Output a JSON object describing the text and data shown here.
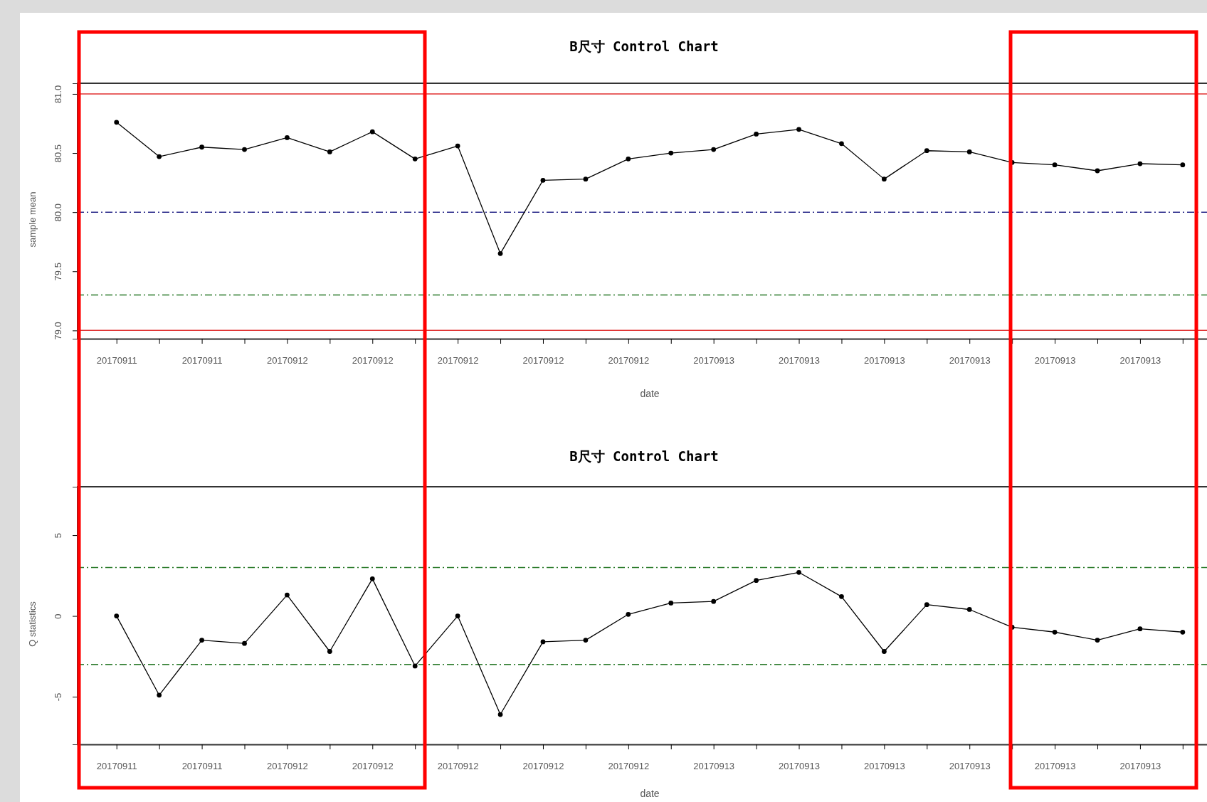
{
  "chart_data": [
    {
      "type": "line",
      "title": "B尺寸 Control Chart",
      "xlabel": "date",
      "ylabel": "sample mean",
      "categories": [
        "20170911",
        null,
        "20170911",
        null,
        "20170912",
        null,
        "20170912",
        null,
        "20170912",
        null,
        "20170912",
        null,
        "20170912",
        null,
        "20170913",
        null,
        "20170913",
        null,
        "20170913",
        null,
        "20170913",
        null,
        "20170913",
        null,
        "20170913",
        null
      ],
      "series": [
        {
          "color": "#000000",
          "values": [
            80.76,
            80.47,
            80.55,
            80.53,
            80.63,
            80.51,
            80.68,
            80.45,
            80.56,
            79.65,
            80.27,
            80.28,
            80.45,
            80.5,
            80.53,
            80.66,
            80.7,
            80.58,
            80.28,
            80.52,
            80.51,
            80.42,
            80.4,
            80.35,
            80.41,
            80.4
          ]
        }
      ],
      "ylim": [
        78.93,
        81.09
      ],
      "yticks": [
        {
          "value": 79,
          "label": "79.0"
        },
        {
          "value": 79.5,
          "label": "79.5"
        },
        {
          "value": 80,
          "label": "80.0"
        },
        {
          "value": 80.5,
          "label": "80.5"
        },
        {
          "value": 81,
          "label": "81.0"
        }
      ],
      "marker": "circle",
      "line_style": "solid",
      "grid": false,
      "ref_lines": [
        {
          "axis": "y",
          "value": 81,
          "color": "#e03030",
          "line_style": "solid"
        },
        {
          "axis": "y",
          "value": 80,
          "color": "#2a2a8a",
          "line_style": "dashed"
        },
        {
          "axis": "y",
          "value": 79.3,
          "color": "#2a7a2a",
          "line_style": "dashed"
        },
        {
          "axis": "y",
          "value": 79,
          "color": "#e03030",
          "line_style": "solid"
        }
      ]
    },
    {
      "type": "line",
      "title": "B尺寸 Control Chart",
      "xlabel": "date",
      "ylabel": "Q statistics",
      "categories": [
        "20170911",
        null,
        "20170911",
        null,
        "20170912",
        null,
        "20170912",
        null,
        "20170912",
        null,
        "20170912",
        null,
        "20170912",
        null,
        "20170913",
        null,
        "20170913",
        null,
        "20170913",
        null,
        "20170913",
        null,
        "20170913",
        null,
        "20170913",
        null
      ],
      "series": [
        {
          "color": "#000000",
          "values": [
            0,
            -4.9,
            -1.5,
            -1.7,
            1.3,
            -2.2,
            2.3,
            -3.1,
            0,
            -6.1,
            -1.6,
            -1.5,
            0.1,
            0.8,
            0.9,
            2.2,
            2.7,
            1.2,
            -2.2,
            0.7,
            0.4,
            -0.7,
            -1.0,
            -1.5,
            -0.8,
            -1.0
          ]
        }
      ],
      "ylim": [
        -7.95,
        8
      ],
      "yticks": [
        -5,
        0,
        5
      ],
      "marker": "circle",
      "line_style": "solid",
      "grid": false,
      "ref_lines": [
        {
          "axis": "y",
          "value": 3,
          "color": "#2a7a2a",
          "line_style": "dashed"
        },
        {
          "axis": "y",
          "value": -3,
          "color": "#2a7a2a",
          "line_style": "dashed"
        }
      ]
    }
  ]
}
